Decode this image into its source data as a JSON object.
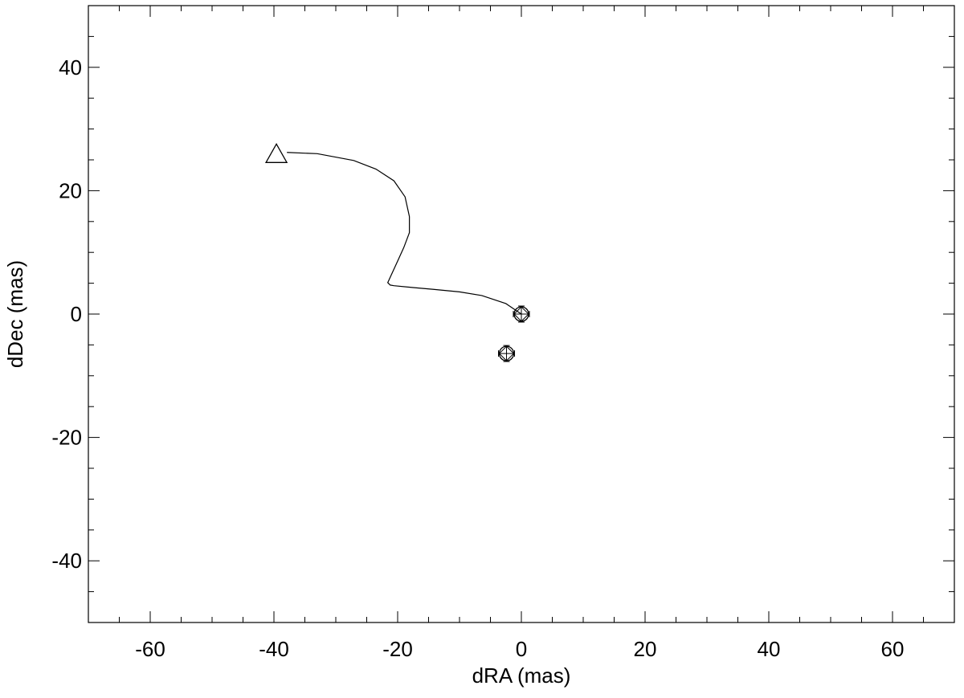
{
  "chart_data": {
    "type": "scatter",
    "xlabel": "dRA (mas)",
    "ylabel": "dDec (mas)",
    "xlim": [
      -70,
      70
    ],
    "ylim": [
      -50,
      50
    ],
    "xticks": [
      -60,
      -40,
      -20,
      0,
      20,
      40,
      60
    ],
    "yticks": [
      -40,
      -20,
      0,
      20,
      40
    ],
    "xminorticks": [
      -65,
      -55,
      -50,
      -45,
      -35,
      -30,
      -25,
      -15,
      -10,
      -5,
      5,
      10,
      15,
      25,
      30,
      35,
      45,
      50,
      55,
      65
    ],
    "yminorticks": [
      -45,
      -35,
      -30,
      -25,
      -15,
      -10,
      -5,
      5,
      10,
      15,
      25,
      30,
      35,
      45
    ],
    "mirror_ticks": true,
    "series": [
      {
        "mode": "line",
        "color": "#000000",
        "x": [
          -37.9,
          -33,
          -27.1,
          -23.5,
          -20.6,
          -18.8,
          -18.1,
          -18.1,
          -19,
          -20,
          -21.6,
          -21.2,
          -20.6,
          -17.5,
          -14.2,
          -10,
          -6.4,
          -2.5,
          0
        ],
        "y": [
          26.2,
          26,
          24.9,
          23.5,
          21.6,
          19,
          15.8,
          13.2,
          10.8,
          8.6,
          5.1,
          4.7,
          4.6,
          4.3,
          4.0,
          3.6,
          3.0,
          1.7,
          0
        ]
      },
      {
        "mode": "marker",
        "marker": "triangle",
        "color": "#000000",
        "x": [
          -39.6
        ],
        "y": [
          26
        ]
      },
      {
        "mode": "marker",
        "marker": "circle-diamond",
        "color": "#000000",
        "x": [
          0,
          -2.4
        ],
        "y": [
          0,
          -6.4
        ],
        "xerr": [
          1.3,
          1.3
        ],
        "yerr": [
          1.3,
          1.3
        ]
      }
    ]
  }
}
